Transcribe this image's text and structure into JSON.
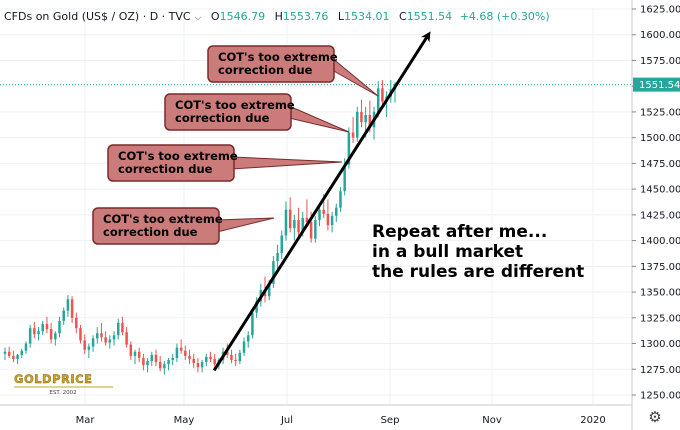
{
  "header": {
    "symbol": "CFDs on Gold (US$ / OZ) · D · TVC",
    "chevron_icon": "chevron-down-icon",
    "open_label": "O",
    "open_value": "1546.79",
    "high_label": "H",
    "high_value": "1553.76",
    "low_label": "L",
    "low_value": "1534.01",
    "close_label": "C",
    "close_value": "1551.54",
    "change": "+4.68 (+0.30%)"
  },
  "colors": {
    "up": "#26a69a",
    "down": "#ef5350",
    "callout_fill": "#cc7b7b",
    "callout_border": "#7a2a2a",
    "price_tag": "#26a69a"
  },
  "chart_data": {
    "type": "candlestick",
    "title": "CFDs on Gold (US$ / OZ) · D · TVC",
    "ylim": [
      1250,
      1625
    ],
    "y_ticks": [
      "1625.00",
      "1600.00",
      "1575.00",
      "1550.00",
      "1525.00",
      "1500.00",
      "1475.00",
      "1450.00",
      "1425.00",
      "1400.00",
      "1375.00",
      "1350.00",
      "1325.00",
      "1300.00",
      "1275.00",
      "1250.00"
    ],
    "x_ticks": [
      "Mar",
      "May",
      "Jul",
      "Sep",
      "Nov",
      "2020"
    ],
    "last_price": "1551.54",
    "series": [
      {
        "values": [
          [
            1290,
            1296,
            1284,
            1292
          ],
          [
            1292,
            1297,
            1286,
            1288
          ],
          [
            1288,
            1293,
            1282,
            1285
          ],
          [
            1285,
            1290,
            1280,
            1289
          ],
          [
            1289,
            1295,
            1286,
            1293
          ],
          [
            1293,
            1302,
            1290,
            1300
          ],
          [
            1300,
            1318,
            1296,
            1315
          ],
          [
            1315,
            1321,
            1305,
            1309
          ],
          [
            1309,
            1316,
            1303,
            1312
          ],
          [
            1312,
            1322,
            1308,
            1319
          ],
          [
            1319,
            1326,
            1310,
            1314
          ],
          [
            1314,
            1320,
            1300,
            1304
          ],
          [
            1304,
            1312,
            1298,
            1310
          ],
          [
            1310,
            1326,
            1306,
            1322
          ],
          [
            1322,
            1335,
            1318,
            1332
          ],
          [
            1332,
            1347,
            1326,
            1343
          ],
          [
            1343,
            1346,
            1320,
            1325
          ],
          [
            1325,
            1330,
            1310,
            1315
          ],
          [
            1315,
            1318,
            1300,
            1303
          ],
          [
            1303,
            1309,
            1290,
            1294
          ],
          [
            1294,
            1300,
            1286,
            1297
          ],
          [
            1297,
            1308,
            1292,
            1305
          ],
          [
            1305,
            1316,
            1300,
            1310
          ],
          [
            1310,
            1320,
            1302,
            1306
          ],
          [
            1306,
            1312,
            1298,
            1301
          ],
          [
            1301,
            1308,
            1295,
            1304
          ],
          [
            1304,
            1312,
            1298,
            1308
          ],
          [
            1308,
            1324,
            1304,
            1320
          ],
          [
            1320,
            1326,
            1308,
            1311
          ],
          [
            1311,
            1316,
            1296,
            1299
          ],
          [
            1299,
            1302,
            1284,
            1288
          ],
          [
            1288,
            1294,
            1280,
            1292
          ],
          [
            1292,
            1296,
            1282,
            1286
          ],
          [
            1286,
            1290,
            1274,
            1279
          ],
          [
            1279,
            1286,
            1272,
            1283
          ],
          [
            1283,
            1292,
            1278,
            1289
          ],
          [
            1289,
            1294,
            1278,
            1282
          ],
          [
            1282,
            1288,
            1273,
            1276
          ],
          [
            1276,
            1283,
            1270,
            1280
          ],
          [
            1280,
            1286,
            1274,
            1284
          ],
          [
            1284,
            1290,
            1279,
            1286
          ],
          [
            1286,
            1300,
            1282,
            1296
          ],
          [
            1296,
            1304,
            1290,
            1293
          ],
          [
            1293,
            1298,
            1284,
            1288
          ],
          [
            1288,
            1294,
            1280,
            1285
          ],
          [
            1285,
            1290,
            1276,
            1281
          ],
          [
            1281,
            1286,
            1272,
            1277
          ],
          [
            1277,
            1284,
            1272,
            1282
          ],
          [
            1282,
            1290,
            1278,
            1287
          ],
          [
            1287,
            1292,
            1282,
            1285
          ],
          [
            1285,
            1290,
            1276,
            1280
          ],
          [
            1280,
            1286,
            1275,
            1284
          ],
          [
            1284,
            1296,
            1280,
            1292
          ],
          [
            1292,
            1300,
            1286,
            1289
          ],
          [
            1289,
            1294,
            1281,
            1284
          ],
          [
            1284,
            1290,
            1278,
            1283
          ],
          [
            1283,
            1294,
            1280,
            1291
          ],
          [
            1291,
            1306,
            1288,
            1302
          ],
          [
            1302,
            1312,
            1296,
            1308
          ],
          [
            1308,
            1334,
            1305,
            1330
          ],
          [
            1330,
            1345,
            1325,
            1341
          ],
          [
            1341,
            1358,
            1336,
            1352
          ],
          [
            1352,
            1365,
            1340,
            1346
          ],
          [
            1346,
            1362,
            1342,
            1358
          ],
          [
            1358,
            1385,
            1354,
            1380
          ],
          [
            1380,
            1396,
            1372,
            1388
          ],
          [
            1388,
            1410,
            1382,
            1405
          ],
          [
            1405,
            1438,
            1400,
            1430
          ],
          [
            1430,
            1442,
            1408,
            1412
          ],
          [
            1412,
            1425,
            1400,
            1420
          ],
          [
            1420,
            1432,
            1404,
            1408
          ],
          [
            1408,
            1428,
            1404,
            1422
          ],
          [
            1422,
            1440,
            1414,
            1418
          ],
          [
            1418,
            1428,
            1398,
            1402
          ],
          [
            1402,
            1424,
            1398,
            1420
          ],
          [
            1420,
            1436,
            1414,
            1430
          ],
          [
            1430,
            1445,
            1422,
            1426
          ],
          [
            1426,
            1440,
            1410,
            1415
          ],
          [
            1415,
            1428,
            1408,
            1424
          ],
          [
            1424,
            1436,
            1418,
            1432
          ],
          [
            1432,
            1452,
            1428,
            1448
          ],
          [
            1448,
            1480,
            1444,
            1474
          ],
          [
            1474,
            1510,
            1470,
            1505
          ],
          [
            1505,
            1520,
            1495,
            1500
          ],
          [
            1500,
            1530,
            1496,
            1525
          ],
          [
            1525,
            1537,
            1510,
            1515
          ],
          [
            1515,
            1530,
            1500,
            1522
          ],
          [
            1522,
            1536,
            1505,
            1510
          ],
          [
            1510,
            1530,
            1498,
            1525
          ],
          [
            1525,
            1555,
            1520,
            1548
          ],
          [
            1548,
            1556,
            1530,
            1535
          ],
          [
            1535,
            1545,
            1520,
            1540
          ],
          [
            1540,
            1556,
            1534,
            1547
          ],
          [
            1547,
            1554,
            1534,
            1552
          ]
        ]
      }
    ],
    "trendline": {
      "from": [
        1274,
        0.315
      ],
      "to": [
        1600,
        0.63
      ]
    },
    "annotations": {
      "callouts": [
        "COT's too extreme\ncorrection due",
        "COT's too extreme\ncorrection due",
        "COT's too extreme\ncorrection due",
        "COT's too extreme\ncorrection due"
      ],
      "big_text": [
        "Repeat after me...",
        "in a bull market",
        "the rules are different"
      ]
    }
  },
  "logo": {
    "text": "GOLDPRICE",
    "sub": "EST. 2002"
  },
  "settings_icon": "gear-icon"
}
